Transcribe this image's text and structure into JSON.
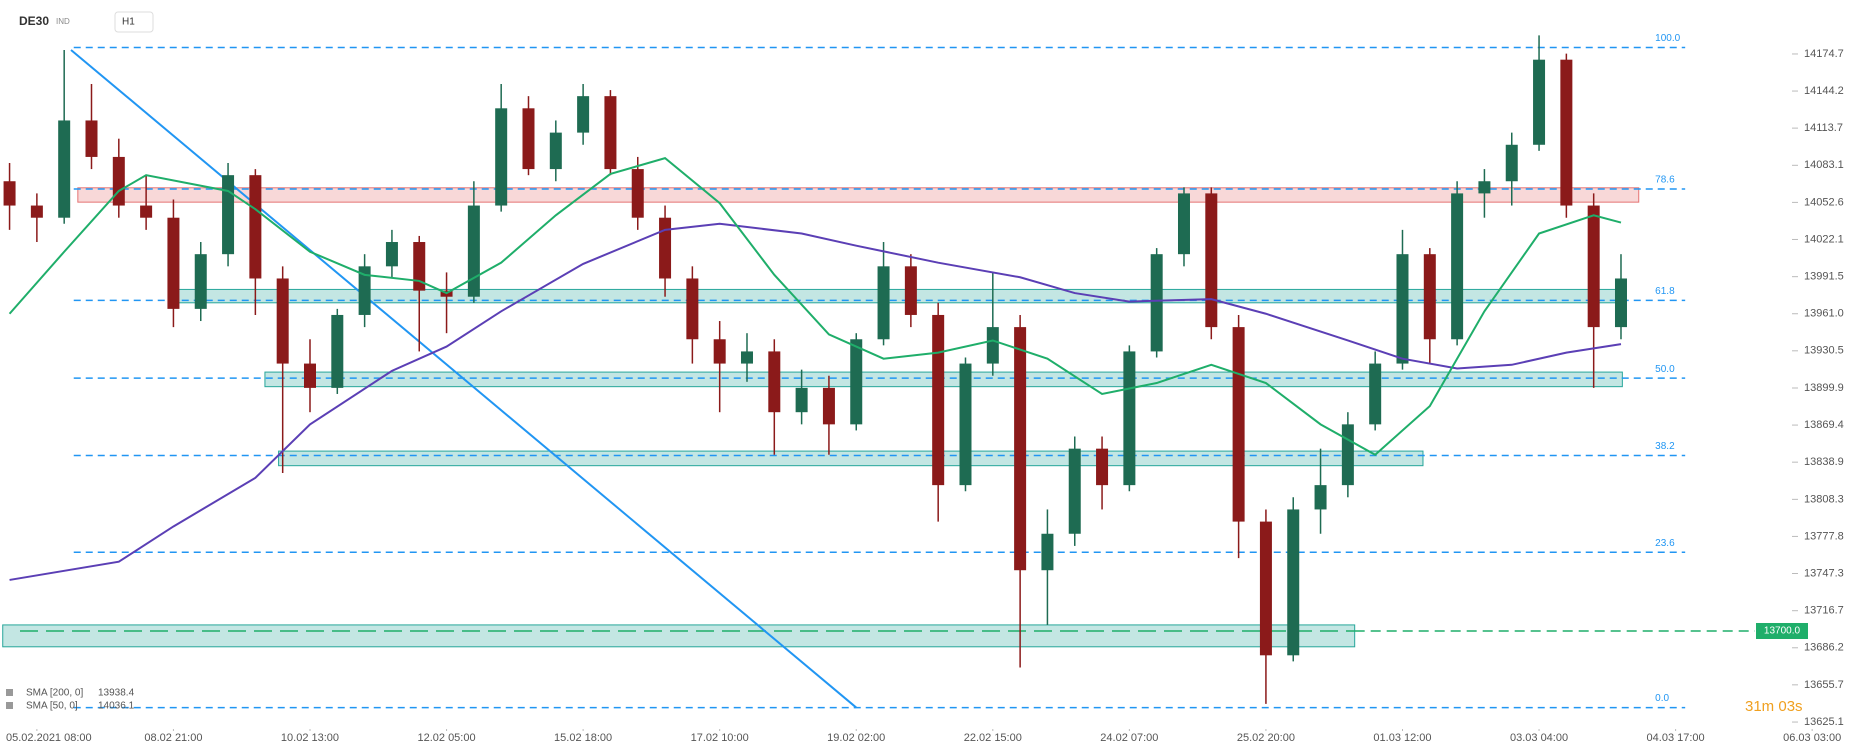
{
  "chart_data": {
    "type": "candlestick",
    "title": "DE30",
    "badge": "IND",
    "timeframe": "H1",
    "timer": "31m 03s",
    "xlim": [
      -0.27,
      12.12
    ],
    "ylim": [
      13620.2,
      14219.1
    ],
    "xticks": [
      {
        "value": 0,
        "label": "05.02.2021 08:00"
      },
      {
        "value": 1,
        "label": "08.02 21:00"
      },
      {
        "value": 2,
        "label": "10.02 13:00"
      },
      {
        "value": 3,
        "label": "12.02 05:00"
      },
      {
        "value": 4,
        "label": "15.02 18:00"
      },
      {
        "value": 5,
        "label": "17.02 10:00"
      },
      {
        "value": 6,
        "label": "19.02 02:00"
      },
      {
        "value": 7,
        "label": "22.02 15:00"
      },
      {
        "value": 8,
        "label": "24.02 07:00"
      },
      {
        "value": 9,
        "label": "25.02 20:00"
      },
      {
        "value": 10,
        "label": "01.03 12:00"
      },
      {
        "value": 11,
        "label": "03.03 04:00"
      },
      {
        "value": 12,
        "label": "04.03 17:00"
      },
      {
        "value": 13,
        "label": "06.03 03:00"
      }
    ],
    "yticks": [
      14174.7,
      14144.2,
      14113.7,
      14083.1,
      14052.6,
      14022.1,
      13991.5,
      {
        "value": 13961.0,
        "label": "13961.0"
      },
      13930.5,
      13899.9,
      13869.4,
      13838.9,
      13808.3,
      13777.8,
      13747.3,
      13716.7,
      13686.2,
      13655.7,
      13625.1
    ],
    "candles": {
      "up_color": "#1e6b52",
      "down_color": "#8b1a1a",
      "x": [
        -0.2,
        0,
        0.2,
        0.4,
        0.6,
        0.8,
        1,
        1.2,
        1.4,
        1.6,
        1.8,
        2,
        2.2,
        2.4,
        2.6,
        2.8,
        3,
        3.2,
        3.4,
        3.6,
        3.8,
        4,
        4.2,
        4.4,
        4.6,
        4.8,
        5,
        5.2,
        5.4,
        5.6,
        5.8,
        6,
        6.2,
        6.4,
        6.6,
        6.8,
        7,
        7.2,
        7.4,
        7.6,
        7.8,
        8,
        8.2,
        8.4,
        8.6,
        8.8,
        9,
        9.2,
        9.4,
        9.6,
        9.8,
        10,
        10.2,
        10.4,
        10.6,
        10.8,
        11,
        11.2,
        11.4,
        11.6
      ],
      "values": [
        [
          14070,
          14085,
          14030,
          14050
        ],
        [
          14050,
          14060,
          14020,
          14040
        ],
        [
          14040,
          14178,
          14035,
          14120
        ],
        [
          14120,
          14150,
          14080,
          14090
        ],
        [
          14090,
          14105,
          14040,
          14050
        ],
        [
          14050,
          14075,
          14030,
          14040
        ],
        [
          14040,
          14055,
          13950,
          13965
        ],
        [
          13965,
          14020,
          13955,
          14010
        ],
        [
          14010,
          14085,
          14000,
          14075
        ],
        [
          14075,
          14080,
          13960,
          13990
        ],
        [
          13990,
          14000,
          13830,
          13920
        ],
        [
          13920,
          13940,
          13880,
          13900
        ],
        [
          13900,
          13965,
          13895,
          13960
        ],
        [
          13960,
          14010,
          13950,
          14000
        ],
        [
          14000,
          14030,
          13990,
          14020
        ],
        [
          14020,
          14025,
          13930,
          13980
        ],
        [
          13980,
          13995,
          13945,
          13975
        ],
        [
          13975,
          14070,
          13970,
          14050
        ],
        [
          14050,
          14150,
          14045,
          14130
        ],
        [
          14130,
          14140,
          14075,
          14080
        ],
        [
          14080,
          14120,
          14070,
          14110
        ],
        [
          14110,
          14150,
          14100,
          14140
        ],
        [
          14140,
          14145,
          14075,
          14080
        ],
        [
          14080,
          14090,
          14030,
          14040
        ],
        [
          14040,
          14050,
          13975,
          13990
        ],
        [
          13990,
          14000,
          13920,
          13940
        ],
        [
          13940,
          13955,
          13880,
          13920
        ],
        [
          13920,
          13945,
          13905,
          13930
        ],
        [
          13930,
          13940,
          13845,
          13880
        ],
        [
          13880,
          13915,
          13870,
          13900
        ],
        [
          13900,
          13910,
          13845,
          13870
        ],
        [
          13870,
          13945,
          13865,
          13940
        ],
        [
          13940,
          14020,
          13935,
          14000
        ],
        [
          14000,
          14010,
          13950,
          13960
        ],
        [
          13960,
          13970,
          13790,
          13820
        ],
        [
          13820,
          13925,
          13815,
          13920
        ],
        [
          13920,
          13995,
          13910,
          13950
        ],
        [
          13950,
          13960,
          13670,
          13750
        ],
        [
          13750,
          13800,
          13705,
          13780
        ],
        [
          13780,
          13860,
          13770,
          13850
        ],
        [
          13850,
          13860,
          13800,
          13820
        ],
        [
          13820,
          13935,
          13815,
          13930
        ],
        [
          13930,
          14015,
          13925,
          14010
        ],
        [
          14010,
          14065,
          14000,
          14060
        ],
        [
          14060,
          14065,
          13940,
          13950
        ],
        [
          13950,
          13960,
          13760,
          13790
        ],
        [
          13790,
          13800,
          13640,
          13680
        ],
        [
          13680,
          13810,
          13675,
          13800
        ],
        [
          13800,
          13850,
          13780,
          13820
        ],
        [
          13820,
          13880,
          13810,
          13870
        ],
        [
          13870,
          13930,
          13865,
          13920
        ],
        [
          13920,
          14030,
          13915,
          14010
        ],
        [
          14010,
          14015,
          13920,
          13940
        ],
        [
          13940,
          14070,
          13935,
          14060
        ],
        [
          14060,
          14080,
          14040,
          14070
        ],
        [
          14070,
          14110,
          14050,
          14100
        ],
        [
          14100,
          14190,
          14095,
          14170
        ],
        [
          14170,
          14175,
          14040,
          14050
        ],
        [
          14050,
          14060,
          13900,
          13950
        ],
        [
          13950,
          14010,
          13940,
          13990
        ]
      ]
    },
    "indicators": [
      {
        "name": "SMA [200, 0]",
        "value": 13938.4,
        "color": "#5b3fb5",
        "x": [
          -0.2,
          0.6,
          1,
          1.6,
          2,
          2.6,
          3,
          3.4,
          4,
          4.6,
          5,
          5.6,
          6,
          6.6,
          7.2,
          7.6,
          8,
          8.6,
          9,
          9.6,
          10,
          10.4,
          10.8,
          11.2,
          11.6
        ],
        "values": [
          13742,
          13757,
          13786,
          13826,
          13870,
          13914,
          13934,
          13963,
          14002,
          14030,
          14035,
          14027,
          14017,
          14003,
          13991,
          13978,
          13971,
          13973,
          13961,
          13939,
          13924,
          13916,
          13919,
          13929,
          13936
        ]
      },
      {
        "name": "SMA [50, 0]",
        "value": 14036.1,
        "color": "#1fae6a",
        "x": [
          -0.2,
          0.2,
          0.6,
          0.8,
          1.4,
          1.6,
          2,
          2.4,
          2.8,
          3,
          3.4,
          3.8,
          4.2,
          4.6,
          5,
          5.4,
          5.8,
          6.2,
          6.6,
          7,
          7.4,
          7.8,
          8.2,
          8.6,
          9,
          9.4,
          9.8,
          10.2,
          10.6,
          11,
          11.4,
          11.6
        ],
        "values": [
          13961,
          14012,
          14062,
          14075,
          14062,
          14047,
          14012,
          13993,
          13988,
          13978,
          14003,
          14042,
          14076,
          14089,
          14052,
          13993,
          13944,
          13924,
          13929,
          13939,
          13924,
          13895,
          13904,
          13919,
          13904,
          13870,
          13845,
          13885,
          13963,
          14027,
          14042,
          14036
        ]
      }
    ],
    "trendline": {
      "color": "#2196f3",
      "x": [
        0.25,
        6.0
      ],
      "values": [
        14178,
        13637
      ]
    },
    "fib_levels": {
      "color": "#2196f3",
      "x": [
        0.27,
        12.07
      ],
      "levels": [
        {
          "label": "100.0",
          "value": 14180
        },
        {
          "label": "78.6",
          "value": 14063.6
        },
        {
          "label": "61.8",
          "value": 13972
        },
        {
          "label": "50.0",
          "value": 13908
        },
        {
          "label": "38.2",
          "value": 13844.4
        },
        {
          "label": "23.6",
          "value": 13764.8
        },
        {
          "label": "0.0",
          "value": 13637
        }
      ]
    },
    "zones": [
      {
        "color": "#e57373",
        "x": [
          0.3,
          11.73
        ],
        "range": [
          14052.8,
          14064.6
        ]
      },
      {
        "color": "#26a69a",
        "x": [
          1.02,
          11.57
        ],
        "range": [
          13970,
          13981
        ]
      },
      {
        "color": "#26a69a",
        "x": [
          1.67,
          11.61
        ],
        "range": [
          13901,
          13913
        ]
      },
      {
        "color": "#26a69a",
        "x": [
          1.77,
          10.15
        ],
        "range": [
          13836,
          13848
        ]
      },
      {
        "color": "#26a69a",
        "x": [
          -0.25,
          9.65
        ],
        "range": [
          13687,
          13705
        ]
      }
    ],
    "price_line": {
      "value": 13700,
      "label": "13700.0",
      "color": "#1fae6a"
    }
  }
}
